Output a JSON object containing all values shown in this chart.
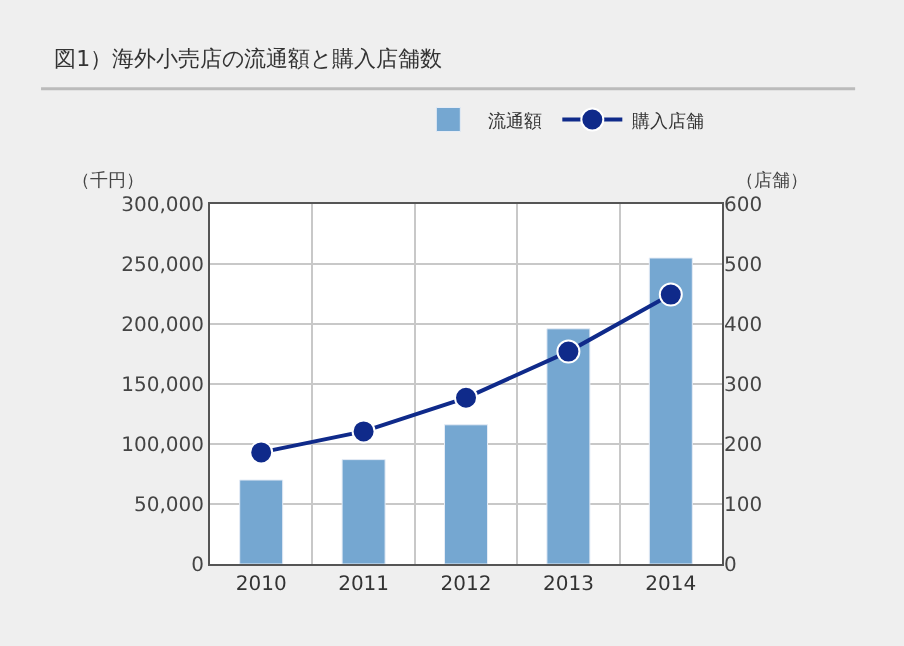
{
  "chart_data": {
    "type": "bar",
    "title": "図1）海外小売店の流通額と購入店舗数",
    "ylabel": "（千円）",
    "y2label": "（店舗）",
    "categories": [
      "2010",
      "2011",
      "2012",
      "2013",
      "2014"
    ],
    "series": [
      {
        "name": "流通額",
        "color": "#75a7d1",
        "values": [
          70000,
          87000,
          116000,
          196000,
          255000
        ]
      },
      {
        "name": "購入店舗",
        "type": "line",
        "axis": "y2",
        "color": "#0f2a8a",
        "marker": "circle",
        "values": [
          186,
          221,
          277,
          354,
          449
        ]
      }
    ],
    "ylim": [
      0,
      300000
    ],
    "yticks": [
      0,
      {
        "value": 50000,
        "label": "50,000"
      },
      {
        "value": 100000,
        "label": "100,000"
      },
      {
        "value": 150000,
        "label": "150,000"
      },
      {
        "value": 200000,
        "label": "200,000"
      },
      {
        "value": 250000,
        "label": "250,000"
      },
      {
        "value": 300000,
        "label": "300,000"
      }
    ],
    "y2lim": [
      0,
      600
    ],
    "y2ticks": [
      0,
      100,
      200,
      300,
      400,
      500,
      600
    ],
    "grid": true,
    "legend": "top right"
  }
}
